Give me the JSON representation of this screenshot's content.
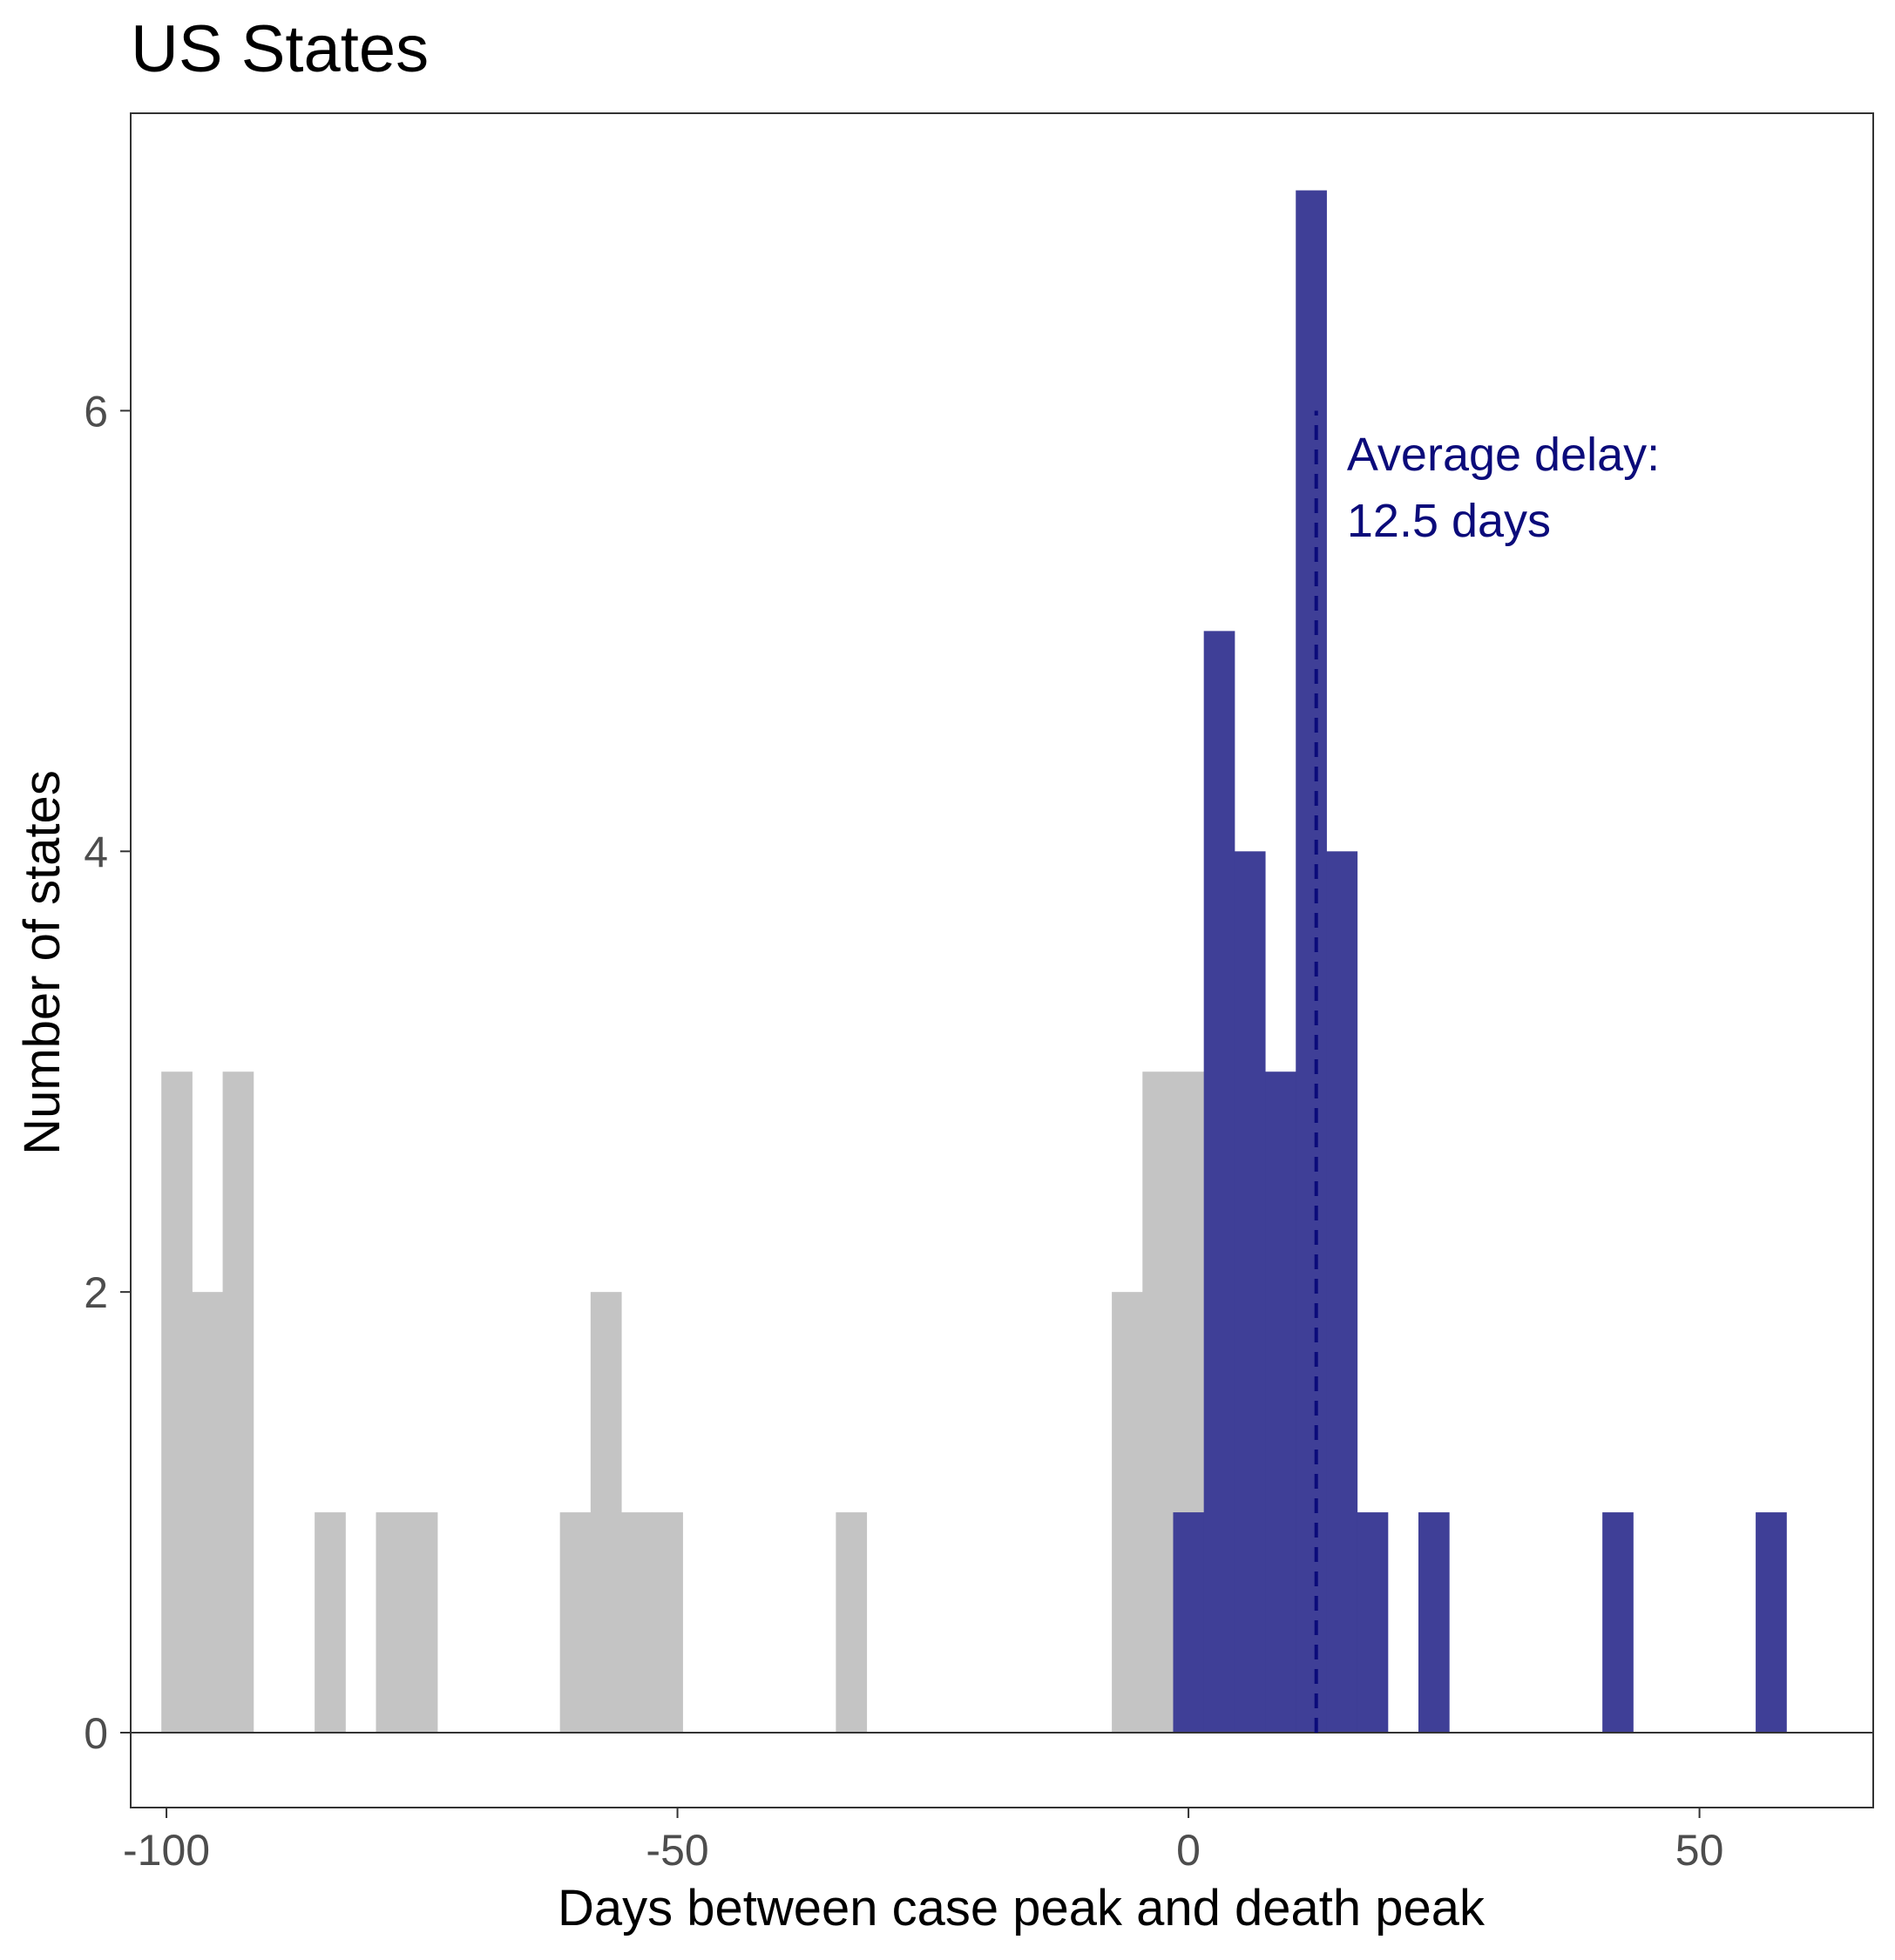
{
  "chart_data": {
    "type": "bar",
    "title": "US States",
    "xlabel": "Days between case peak and death peak",
    "ylabel": "Number of states",
    "xlim": [
      -103.5,
      67
    ],
    "ylim": [
      -0.34,
      7.35
    ],
    "bin_width": 3,
    "x_ticks": [
      -100,
      -50,
      0,
      50
    ],
    "x_tick_labels": [
      "-100",
      "-50",
      "0",
      "50"
    ],
    "y_ticks": [
      0,
      2,
      4,
      6
    ],
    "y_tick_labels": [
      "0",
      "2",
      "4",
      "6"
    ],
    "grid": false,
    "colors": {
      "negative": "#c4c4c4",
      "positive": "#3f3f97",
      "annotation": "#0b0b7a",
      "axis": "#333333"
    },
    "series": [
      {
        "group": "negative",
        "bins": [
          {
            "x": -99,
            "count": 3
          },
          {
            "x": -96,
            "count": 2
          },
          {
            "x": -93,
            "count": 3
          },
          {
            "x": -84,
            "count": 1
          },
          {
            "x": -78,
            "count": 1
          },
          {
            "x": -75,
            "count": 1
          },
          {
            "x": -60,
            "count": 1
          },
          {
            "x": -57,
            "count": 2
          },
          {
            "x": -54,
            "count": 1
          },
          {
            "x": -51,
            "count": 1
          },
          {
            "x": -33,
            "count": 1
          },
          {
            "x": -6,
            "count": 2
          },
          {
            "x": -3,
            "count": 3
          },
          {
            "x": 0,
            "count": 3
          }
        ]
      },
      {
        "group": "positive",
        "bins": [
          {
            "x": 0,
            "count": 1
          },
          {
            "x": 3,
            "count": 5
          },
          {
            "x": 6,
            "count": 4
          },
          {
            "x": 9,
            "count": 3
          },
          {
            "x": 12,
            "count": 7
          },
          {
            "x": 15,
            "count": 4
          },
          {
            "x": 18,
            "count": 1
          },
          {
            "x": 24,
            "count": 1
          },
          {
            "x": 42,
            "count": 1
          },
          {
            "x": 57,
            "count": 1
          }
        ]
      }
    ],
    "reference_line": {
      "x": 12.5,
      "y_top": 6,
      "style": "dashed"
    },
    "annotation": {
      "line1": "Average delay:",
      "line2": "12.5 days",
      "x": 15.5,
      "y1": 5.8,
      "y2": 5.5
    }
  }
}
